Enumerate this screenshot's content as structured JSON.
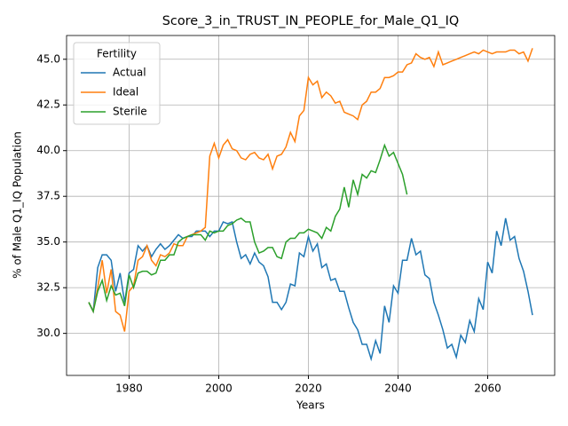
{
  "chart_data": {
    "type": "line",
    "title": "Score_3_in_TRUST_IN_PEOPLE_for_Male_Q1_IQ",
    "xlabel": "Years",
    "ylabel": "% of Male Q1_IQ Population",
    "x": [
      1971,
      1972,
      1973,
      1974,
      1975,
      1976,
      1977,
      1978,
      1979,
      1980,
      1981,
      1982,
      1983,
      1984,
      1985,
      1986,
      1987,
      1988,
      1989,
      1990,
      1991,
      1992,
      1993,
      1994,
      1995,
      1996,
      1997,
      1998,
      1999,
      2000,
      2001,
      2002,
      2003,
      2004,
      2005,
      2006,
      2007,
      2008,
      2009,
      2010,
      2011,
      2012,
      2013,
      2014,
      2015,
      2016,
      2017,
      2018,
      2019,
      2020,
      2021,
      2022,
      2023,
      2024,
      2025,
      2026,
      2027,
      2028,
      2029,
      2030,
      2031,
      2032,
      2033,
      2034,
      2035,
      2036,
      2037,
      2038,
      2039,
      2040,
      2041,
      2042,
      2043,
      2044,
      2045,
      2046,
      2047,
      2048,
      2049,
      2050,
      2051,
      2052,
      2053,
      2054,
      2055,
      2056,
      2057,
      2058,
      2059,
      2060,
      2061,
      2062,
      2063,
      2064,
      2065,
      2066,
      2067,
      2068,
      2069,
      2070
    ],
    "series": [
      {
        "name": "Actual",
        "color": "#1f77b4",
        "values": [
          31.7,
          31.2,
          33.6,
          34.3,
          34.3,
          34.0,
          32.3,
          33.3,
          31.7,
          33.3,
          33.5,
          34.8,
          34.5,
          34.8,
          34.2,
          34.6,
          34.9,
          34.6,
          34.8,
          35.1,
          35.4,
          35.2,
          35.3,
          35.3,
          35.6,
          35.6,
          35.6,
          35.3,
          35.6,
          35.6,
          36.1,
          36.0,
          36.1,
          35.0,
          34.1,
          34.3,
          33.8,
          34.4,
          33.9,
          33.7,
          33.1,
          31.7,
          31.7,
          31.3,
          31.7,
          32.7,
          32.6,
          34.4,
          34.2,
          35.3,
          34.5,
          34.9,
          33.6,
          33.8,
          32.9,
          33.0,
          32.3,
          32.3,
          31.4,
          30.6,
          30.2,
          29.4,
          29.4,
          28.6,
          29.6,
          28.9,
          31.5,
          30.6,
          32.6,
          32.2,
          34.0,
          34.0,
          35.2,
          34.3,
          34.5,
          33.2,
          33.0,
          31.7,
          31.0,
          30.2,
          29.2,
          29.4,
          28.7,
          29.9,
          29.5,
          30.7,
          30.1,
          31.9,
          31.3,
          33.9,
          33.3,
          35.6,
          34.8,
          36.3,
          35.1,
          35.3,
          34.1,
          33.4,
          32.3,
          31.0
        ]
      },
      {
        "name": "Ideal",
        "color": "#ff7f0e",
        "values": [
          31.7,
          31.2,
          32.5,
          34.0,
          32.2,
          33.5,
          31.2,
          31.0,
          30.1,
          32.3,
          32.6,
          34.0,
          34.2,
          34.8,
          34.0,
          33.7,
          34.3,
          34.2,
          34.4,
          34.9,
          34.8,
          34.8,
          35.3,
          35.4,
          35.5,
          35.6,
          35.8,
          39.7,
          40.4,
          39.6,
          40.3,
          40.6,
          40.1,
          40.0,
          39.6,
          39.5,
          39.8,
          39.9,
          39.6,
          39.5,
          39.8,
          39.0,
          39.7,
          39.8,
          40.2,
          41.0,
          40.5,
          41.9,
          42.2,
          44.0,
          43.6,
          43.8,
          42.9,
          43.2,
          43.0,
          42.6,
          42.7,
          42.1,
          42.0,
          41.9,
          41.7,
          42.5,
          42.7,
          43.2,
          43.2,
          43.4,
          44.0,
          44.0,
          44.1,
          44.3,
          44.3,
          44.7,
          44.8,
          45.3,
          45.1,
          45.0,
          45.1,
          44.6,
          45.4,
          44.7,
          44.8,
          44.9,
          45.0,
          45.1,
          45.2,
          45.3,
          45.4,
          45.3,
          45.5,
          45.4,
          45.3,
          45.4,
          45.4,
          45.4,
          45.5,
          45.5,
          45.3,
          45.4,
          44.9,
          45.6
        ]
      },
      {
        "name": "Sterile",
        "color": "#2ca02c",
        "values": [
          31.7,
          31.2,
          32.3,
          32.9,
          31.8,
          32.6,
          32.1,
          32.2,
          31.5,
          33.2,
          32.5,
          33.3,
          33.4,
          33.4,
          33.2,
          33.3,
          34.0,
          34.0,
          34.3,
          34.3,
          35.0,
          35.2,
          35.3,
          35.4,
          35.4,
          35.4,
          35.1,
          35.6,
          35.5,
          35.6,
          35.6,
          35.9,
          36.0,
          36.2,
          36.3,
          36.1,
          36.1,
          35.0,
          34.4,
          34.5,
          34.7,
          34.7,
          34.2,
          34.1,
          35.0,
          35.2,
          35.2,
          35.5,
          35.5,
          35.7,
          35.6,
          35.5,
          35.2,
          35.8,
          35.6,
          36.4,
          36.8,
          38.0,
          36.9,
          38.4,
          37.6,
          38.7,
          38.5,
          38.9,
          38.8,
          39.5,
          40.3,
          39.7,
          39.9,
          39.3,
          38.7,
          37.6,
          null,
          null,
          null,
          null,
          null,
          null,
          null,
          null,
          null,
          null,
          null,
          null,
          null,
          null,
          null,
          null,
          null,
          null,
          null,
          null,
          null,
          null,
          null,
          null,
          null,
          null,
          null,
          null
        ]
      }
    ],
    "xlim": [
      1966.05,
      2074.95
    ],
    "xticks": [
      1980,
      2000,
      2020,
      2040,
      2060
    ],
    "ylim": [
      27.7,
      46.3
    ],
    "yticks": [
      {
        "value": 30,
        "label": "30.0"
      },
      {
        "value": 32.5,
        "label": "32.5"
      },
      {
        "value": 35,
        "label": "35.0"
      },
      {
        "value": 37.5,
        "label": "37.5"
      },
      {
        "value": 40,
        "label": "40.0"
      },
      {
        "value": 42.5,
        "label": "42.5"
      },
      {
        "value": 45,
        "label": "45.0"
      }
    ],
    "grid": true,
    "legend_title": "Fertility",
    "legend_loc": "upper left"
  }
}
